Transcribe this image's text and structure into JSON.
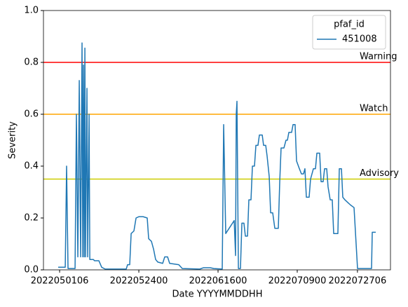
{
  "chart_data": {
    "type": "line",
    "xlabel": "Date YYYYMMDDHH",
    "ylabel": "Severity",
    "xlim": [
      -20.4,
      417.7
    ],
    "ylim": [
      0,
      1
    ],
    "xticks": [
      {
        "value": 0,
        "label": "2022050106"
      },
      {
        "value": 100,
        "label": "2022052400"
      },
      {
        "value": 200,
        "label": "2022061600"
      },
      {
        "value": 300,
        "label": "2022070900"
      },
      {
        "value": 376,
        "label": "2022072706"
      }
    ],
    "yticks": [
      {
        "value": 0,
        "label": "0.0"
      },
      {
        "value": 0.2,
        "label": "0.2"
      },
      {
        "value": 0.4,
        "label": "0.4"
      },
      {
        "value": 0.6,
        "label": "0.6"
      },
      {
        "value": 0.8,
        "label": "0.8"
      },
      {
        "value": 1,
        "label": "1.0"
      }
    ],
    "legend_title": "pfaf_id",
    "legend_position": "upper right",
    "x": [
      -1.8,
      7.1,
      8.8,
      10.6,
      19.5,
      21.2,
      23.0,
      24.8,
      26.5,
      28.3,
      29.2,
      30.1,
      31.0,
      31.9,
      32.7,
      34.5,
      35.4,
      37.2,
      38.1,
      42.5,
      44.2,
      49.6,
      53.1,
      57.5,
      84.1,
      85.8,
      88.5,
      90.3,
      93.8,
      96.5,
      100,
      105.3,
      110.6,
      112.4,
      115.9,
      118.6,
      121.2,
      123.9,
      130.1,
      132.7,
      136.3,
      138.9,
      150.4,
      154.9,
      177,
      181.4,
      190.3,
      194.7,
      205.3,
      207.1,
      209.7,
      220.4,
      222.1,
      223,
      223.9,
      225.7,
      228.3,
      230.1,
      232.7,
      234.5,
      237.2,
      238.9,
      241.6,
      243.4,
      246,
      247.8,
      250.4,
      252.2,
      255.8,
      257.5,
      260.2,
      261.9,
      264.6,
      266.4,
      269,
      271.7,
      276.1,
      277.9,
      279.6,
      283.2,
      285.8,
      287.6,
      289.4,
      292.9,
      294.7,
      297.3,
      299.1,
      302.7,
      305.3,
      307.9,
      309.7,
      311.5,
      315,
      316.8,
      320.4,
      323,
      324.8,
      328.3,
      330.1,
      332.7,
      334.5,
      337.2,
      338.9,
      341.6,
      344.2,
      346,
      349.6,
      351.3,
      353.1,
      355.8,
      357.5,
      360.2,
      363.7,
      367.3,
      371.7,
      376.1,
      389.4,
      393.8,
      394.7,
      399.1
    ],
    "series": [
      {
        "name": "451008",
        "color": "#1f77b4",
        "values": [
          0.01,
          0.01,
          0.4,
          0.005,
          0.005,
          0.6,
          0.05,
          0.73,
          0.05,
          0.875,
          0.05,
          0.79,
          0.05,
          0.855,
          0.05,
          0.7,
          0.05,
          0.6,
          0.04,
          0.04,
          0.035,
          0.035,
          0.01,
          0.003,
          0.003,
          0.02,
          0.02,
          0.14,
          0.15,
          0.2,
          0.205,
          0.205,
          0.2,
          0.12,
          0.11,
          0.08,
          0.04,
          0.03,
          0.025,
          0.05,
          0.05,
          0.025,
          0.02,
          0.005,
          0.003,
          0.008,
          0.008,
          0.005,
          0.003,
          0.56,
          0.14,
          0.19,
          0.055,
          0.6,
          0.65,
          0.005,
          0.005,
          0.18,
          0.18,
          0.13,
          0.13,
          0.27,
          0.27,
          0.4,
          0.4,
          0.48,
          0.48,
          0.52,
          0.52,
          0.48,
          0.48,
          0.44,
          0.36,
          0.22,
          0.22,
          0.16,
          0.16,
          0.34,
          0.47,
          0.47,
          0.5,
          0.5,
          0.53,
          0.53,
          0.56,
          0.56,
          0.42,
          0.39,
          0.37,
          0.37,
          0.39,
          0.28,
          0.28,
          0.35,
          0.39,
          0.39,
          0.45,
          0.45,
          0.34,
          0.34,
          0.39,
          0.39,
          0.32,
          0.27,
          0.27,
          0.14,
          0.14,
          0.14,
          0.39,
          0.39,
          0.28,
          0.27,
          0.26,
          0.25,
          0.24,
          0.005,
          0.005,
          0.005,
          0.145,
          0.145
        ]
      }
    ],
    "thresholds": [
      {
        "label": "Warning",
        "value": 0.8,
        "color": "#ff0000"
      },
      {
        "label": "Watch",
        "value": 0.6,
        "color": "#ffa500"
      },
      {
        "label": "Advisory",
        "value": 0.35,
        "color": "#cccc00"
      }
    ]
  }
}
